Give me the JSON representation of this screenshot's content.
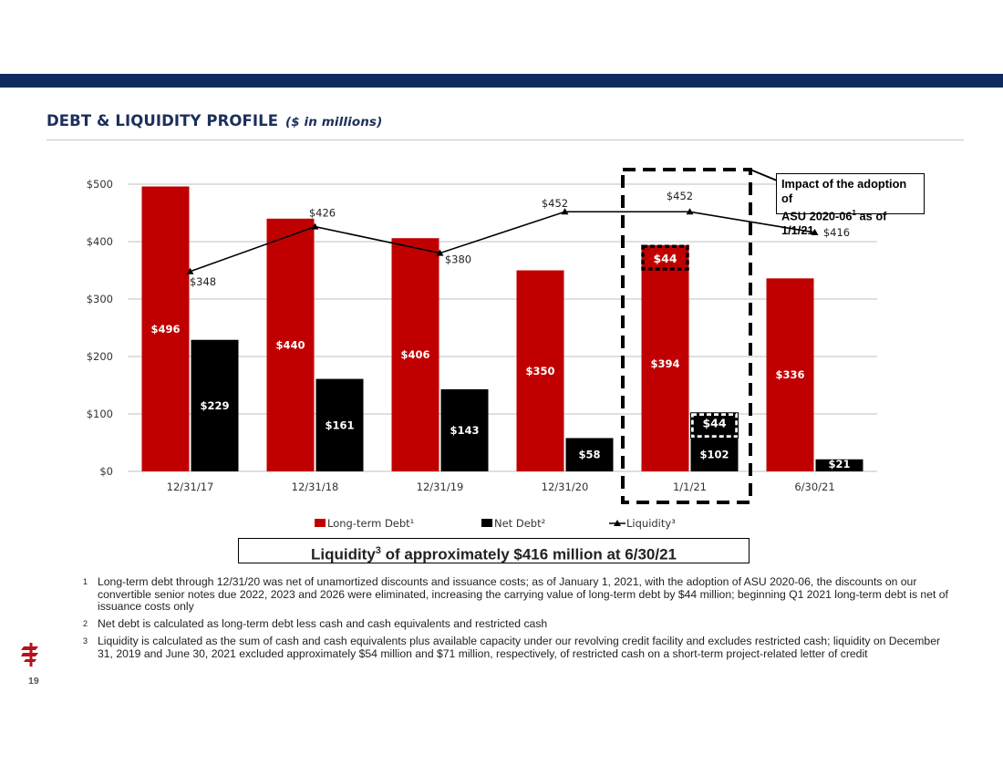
{
  "header": {
    "title": "DEBT & LIQUIDITY PROFILE",
    "subtitle": "($ in millions)",
    "bar_color": "#0f2a5f"
  },
  "chart_data": {
    "type": "bar",
    "categories": [
      "12/31/17",
      "12/31/18",
      "12/31/19",
      "12/31/20",
      "1/1/21",
      "6/30/21"
    ],
    "series": [
      {
        "name": "Long-term Debt¹",
        "type": "bar",
        "color": "#c00000",
        "values": [
          496,
          440,
          406,
          350,
          394,
          336
        ],
        "labels": [
          "$496",
          "$440",
          "$406",
          "$350",
          "$394",
          "$336"
        ]
      },
      {
        "name": "Net Debt²",
        "type": "bar",
        "color": "#000000",
        "values": [
          229,
          161,
          143,
          58,
          102,
          21
        ],
        "labels": [
          "$229",
          "$161",
          "$143",
          "$58",
          "$102",
          "$21"
        ]
      },
      {
        "name": "Liquidity³",
        "type": "line",
        "color": "#000000",
        "values": [
          348,
          426,
          380,
          452,
          452,
          416
        ],
        "labels": [
          "$348",
          "$426",
          "$380",
          "$452",
          "$452",
          "$416"
        ]
      }
    ],
    "adoption_impact": {
      "category": "1/1/21",
      "long_term_debt_increment": 44,
      "net_debt_increment": 44,
      "label": "$44"
    },
    "y_ticks": [
      "$0",
      "$100",
      "$200",
      "$300",
      "$400",
      "$500"
    ],
    "ylim": [
      0,
      500
    ],
    "grid": true,
    "legend": "bottom"
  },
  "callout": {
    "line1": "Impact of the adoption of",
    "line2_pre": "ASU 2020-06",
    "line2_sup": "1",
    "line2_post": " as of 1/1/21"
  },
  "summary": {
    "pre": "Liquidity",
    "sup": "3",
    "post": " of approximately $416 million at 6/30/21"
  },
  "footnotes": [
    {
      "num": "1",
      "text": "Long-term debt through 12/31/20 was net of unamortized discounts and issuance costs; as of January 1, 2021, with the adoption of ASU 2020-06, the discounts on our convertible senior notes due 2022, 2023 and 2026 were eliminated, increasing the carrying value of long-term debt by $44 million; beginning Q1 2021 long-term debt is net of issuance costs only"
    },
    {
      "num": "2",
      "text": "Net debt is calculated as long-term debt less cash and cash equivalents and restricted cash"
    },
    {
      "num": "3",
      "text": "Liquidity is calculated as the sum of cash and cash equivalents plus available capacity under our revolving credit facility and excludes restricted cash; liquidity on December 31, 2019 and June 30, 2021 excluded approximately $54 million and $71 million, respectively, of restricted cash on a short-term project-related letter of credit"
    }
  ],
  "page": {
    "number": "19",
    "logo": "company-logo"
  }
}
